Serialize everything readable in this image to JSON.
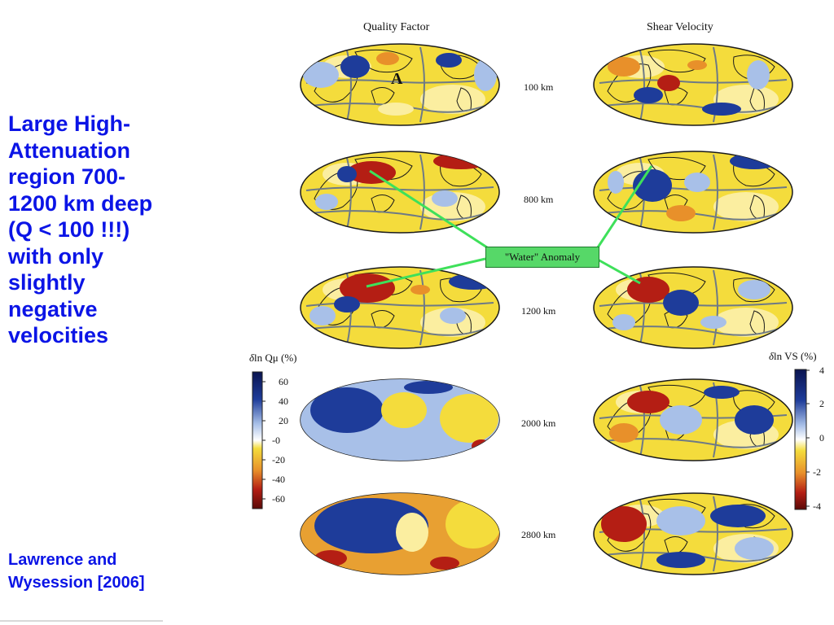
{
  "slide": {
    "main_text_lines": [
      "Large High-",
      "Attenuation",
      "region 700-",
      "1200 km deep",
      "(Q < 100 !!!)",
      "with only",
      "slightly",
      "negative",
      "velocities"
    ],
    "citation_lines": [
      "Lawrence and",
      "Wysession  [2006]"
    ]
  },
  "figure": {
    "left_title": "Quality Factor",
    "right_title": "Shear Velocity",
    "depths": [
      "100 km",
      "800 km",
      "1200 km",
      "2000 km",
      "2800 km"
    ],
    "annotation": "\"Water\" Anomaly",
    "map_label": "A",
    "left_colorbar": {
      "title_italic": "δ",
      "title_rest": "ln Qμ (%)",
      "ticks": [
        "60",
        "40",
        "20",
        "-0",
        "-20",
        "-40",
        "-60"
      ]
    },
    "right_colorbar": {
      "title_italic": "δ",
      "title_rest": "ln VS (%)",
      "ticks": [
        "4",
        "2",
        "0",
        "-2",
        "-4"
      ]
    }
  },
  "colors": {
    "text_blue": "#0b14e6",
    "anomaly_green": "#56d868",
    "map_yellow": "#f4dc3c",
    "map_orange": "#e8902a",
    "map_red": "#b41e14",
    "map_blue": "#1e3c9a",
    "map_lightblue": "#a8c0e8"
  }
}
